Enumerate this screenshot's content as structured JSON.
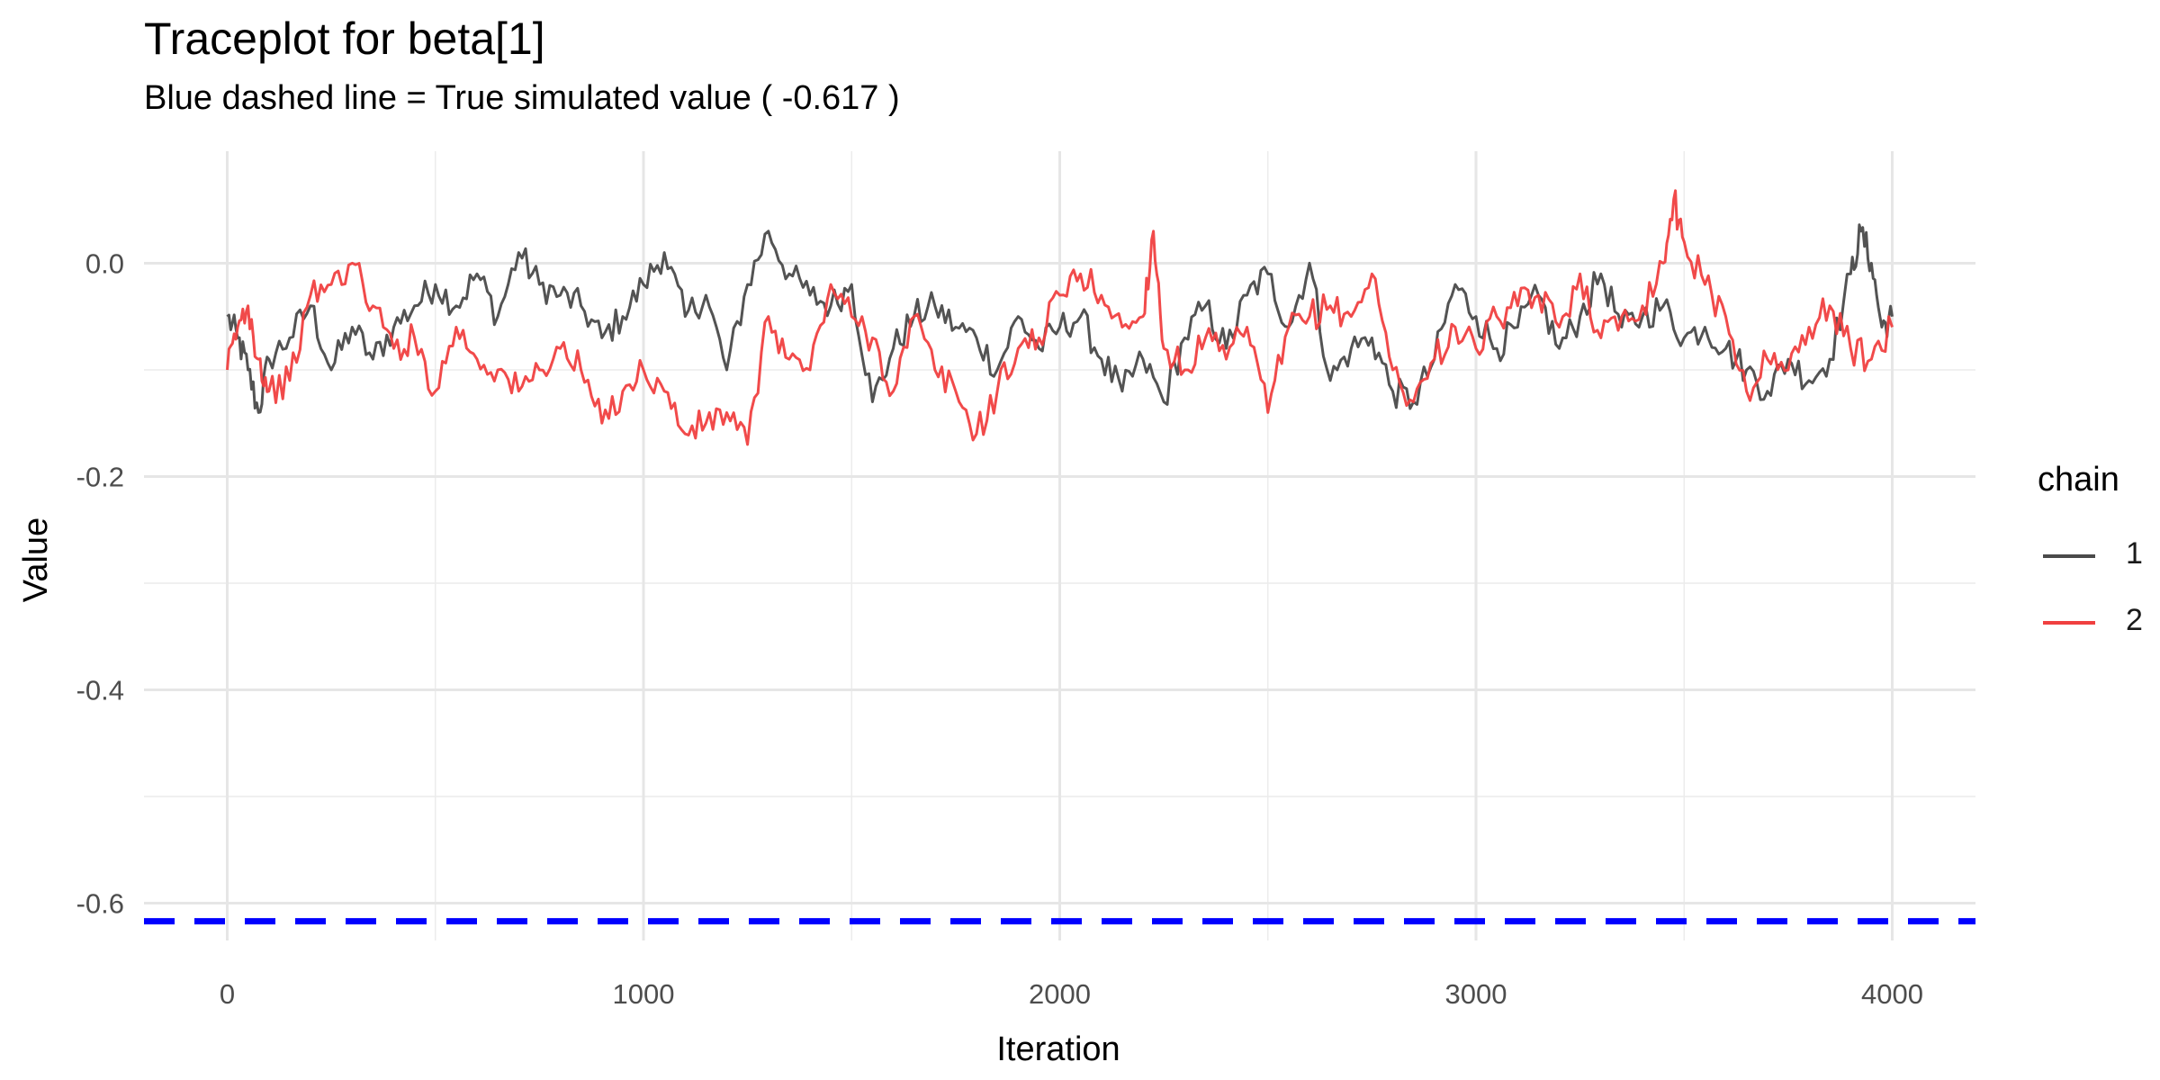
{
  "chart_data": {
    "type": "line",
    "title": "Traceplot for beta[1]",
    "subtitle": "Blue dashed line = True simulated value ( -0.617 )",
    "xlabel": "Iteration",
    "ylabel": "Value",
    "xlim": [
      -200,
      4200
    ],
    "ylim": [
      -0.635,
      0.105
    ],
    "x_ticks": [
      0,
      1000,
      2000,
      3000,
      4000
    ],
    "x_tick_labels": [
      "0",
      "1000",
      "2000",
      "3000",
      "4000"
    ],
    "y_ticks": [
      0.0,
      -0.2,
      -0.4,
      -0.6
    ],
    "y_tick_labels": [
      "0.0",
      "-0.2",
      "-0.4",
      "-0.6"
    ],
    "grid": true,
    "legend": {
      "title": "chain",
      "position": "right"
    },
    "reference_line": {
      "value": -0.617,
      "color": "#0000ff",
      "style": "dashed",
      "label": "True simulated value"
    },
    "series": [
      {
        "name": "1",
        "color": "#4a4a4a",
        "x": [
          0,
          25,
          50,
          75,
          100,
          150,
          200,
          250,
          300,
          350,
          400,
          450,
          500,
          550,
          600,
          650,
          700,
          750,
          800,
          850,
          900,
          950,
          1000,
          1050,
          1100,
          1150,
          1200,
          1250,
          1300,
          1350,
          1400,
          1450,
          1500,
          1550,
          1600,
          1650,
          1700,
          1750,
          1800,
          1850,
          1900,
          1950,
          2000,
          2050,
          2100,
          2150,
          2200,
          2250,
          2300,
          2350,
          2400,
          2450,
          2500,
          2550,
          2600,
          2650,
          2700,
          2750,
          2800,
          2850,
          2900,
          2950,
          3000,
          3050,
          3100,
          3150,
          3200,
          3250,
          3300,
          3350,
          3400,
          3450,
          3500,
          3550,
          3600,
          3650,
          3700,
          3750,
          3800,
          3850,
          3900,
          3925,
          3950,
          3975,
          4000
        ],
        "y": [
          -0.05,
          -0.07,
          -0.1,
          -0.14,
          -0.09,
          -0.07,
          -0.04,
          -0.1,
          -0.06,
          -0.09,
          -0.06,
          -0.04,
          -0.02,
          -0.04,
          -0.01,
          -0.05,
          0.01,
          -0.02,
          -0.03,
          -0.04,
          -0.07,
          -0.05,
          -0.02,
          0.01,
          -0.05,
          -0.03,
          -0.1,
          -0.02,
          0.03,
          -0.01,
          -0.03,
          -0.04,
          -0.02,
          -0.13,
          -0.08,
          -0.05,
          -0.04,
          -0.06,
          -0.07,
          -0.1,
          -0.05,
          -0.08,
          -0.06,
          -0.05,
          -0.09,
          -0.12,
          -0.09,
          -0.13,
          -0.07,
          -0.04,
          -0.08,
          -0.03,
          -0.01,
          -0.06,
          0.0,
          -0.11,
          -0.08,
          -0.07,
          -0.12,
          -0.13,
          -0.09,
          -0.02,
          -0.05,
          -0.08,
          -0.06,
          -0.03,
          -0.08,
          -0.05,
          -0.01,
          -0.06,
          -0.05,
          -0.04,
          -0.07,
          -0.06,
          -0.08,
          -0.1,
          -0.12,
          -0.09,
          -0.11,
          -0.09,
          -0.01,
          0.03,
          0.0,
          -0.06,
          -0.05
        ]
      },
      {
        "name": "2",
        "color": "#f04040",
        "x": [
          0,
          25,
          50,
          75,
          100,
          150,
          200,
          250,
          300,
          350,
          400,
          450,
          500,
          550,
          600,
          650,
          700,
          750,
          800,
          850,
          900,
          950,
          1000,
          1050,
          1100,
          1150,
          1200,
          1250,
          1300,
          1350,
          1400,
          1450,
          1500,
          1550,
          1600,
          1650,
          1700,
          1750,
          1800,
          1850,
          1900,
          1950,
          2000,
          2050,
          2100,
          2150,
          2200,
          2225,
          2250,
          2300,
          2350,
          2400,
          2450,
          2500,
          2550,
          2600,
          2650,
          2700,
          2750,
          2800,
          2850,
          2900,
          2950,
          3000,
          3050,
          3100,
          3150,
          3200,
          3250,
          3300,
          3350,
          3400,
          3450,
          3475,
          3500,
          3550,
          3600,
          3650,
          3700,
          3750,
          3800,
          3850,
          3900,
          3950,
          4000
        ],
        "y": [
          -0.1,
          -0.06,
          -0.04,
          -0.09,
          -0.12,
          -0.11,
          -0.03,
          -0.02,
          0.0,
          -0.04,
          -0.08,
          -0.07,
          -0.12,
          -0.06,
          -0.09,
          -0.1,
          -0.12,
          -0.1,
          -0.08,
          -0.1,
          -0.15,
          -0.12,
          -0.1,
          -0.12,
          -0.16,
          -0.15,
          -0.14,
          -0.17,
          -0.05,
          -0.09,
          -0.1,
          -0.02,
          -0.05,
          -0.07,
          -0.12,
          -0.05,
          -0.1,
          -0.12,
          -0.16,
          -0.12,
          -0.08,
          -0.07,
          -0.03,
          -0.01,
          -0.03,
          -0.06,
          -0.05,
          0.03,
          -0.08,
          -0.1,
          -0.07,
          -0.09,
          -0.06,
          -0.14,
          -0.06,
          -0.05,
          -0.04,
          -0.05,
          -0.01,
          -0.1,
          -0.13,
          -0.09,
          -0.06,
          -0.08,
          -0.05,
          -0.04,
          -0.03,
          -0.06,
          -0.01,
          -0.07,
          -0.05,
          -0.04,
          0.0,
          0.06,
          0.02,
          -0.02,
          -0.05,
          -0.12,
          -0.09,
          -0.1,
          -0.06,
          -0.04,
          -0.08,
          -0.09,
          -0.06
        ]
      }
    ]
  }
}
